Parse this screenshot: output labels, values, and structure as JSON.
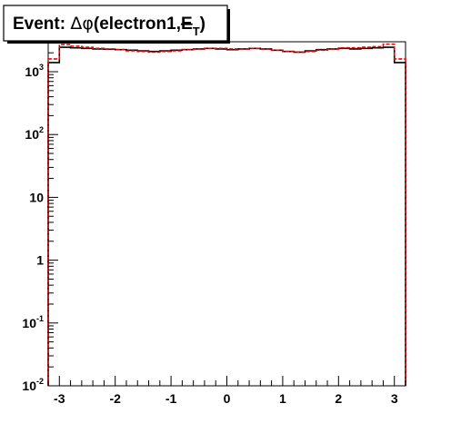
{
  "chart_data": {
    "type": "step",
    "title": {
      "prefix": "Event: ",
      "delta": "Δ",
      "phi": "φ",
      "paren_open": "(electron1,",
      "met_symbol": "E",
      "met_sub": "T",
      "paren_close": ")"
    },
    "xlabel": "",
    "ylabel": "",
    "x_range": [
      -3.2,
      3.2
    ],
    "y_range": [
      0.01,
      3000
    ],
    "y_scale": "log",
    "grid": false,
    "x_ticks": [
      {
        "value": -3,
        "label": "-3"
      },
      {
        "value": -2,
        "label": "-2"
      },
      {
        "value": -1,
        "label": "-1"
      },
      {
        "value": 0,
        "label": "0"
      },
      {
        "value": 1,
        "label": "1"
      },
      {
        "value": 2,
        "label": "2"
      },
      {
        "value": 3,
        "label": "3"
      }
    ],
    "y_ticks": [
      {
        "value": 1000,
        "base": "10",
        "exp": "3"
      },
      {
        "value": 100,
        "base": "10",
        "exp": "2"
      },
      {
        "value": 10,
        "base": "10",
        "exp": ""
      },
      {
        "value": 1,
        "base": "1",
        "exp": ""
      },
      {
        "value": 0.1,
        "base": "10",
        "exp": "-1"
      },
      {
        "value": 0.01,
        "base": "10",
        "exp": "-2"
      }
    ],
    "series": [
      {
        "color": "#000000",
        "style": "solid",
        "bin_edges": [
          -3.2,
          -3.0,
          -2.8,
          -2.6,
          -2.4,
          -2.2,
          -2.0,
          -1.8,
          -1.6,
          -1.4,
          -1.2,
          -1.0,
          -0.8,
          -0.6,
          -0.4,
          -0.2,
          0.0,
          0.2,
          0.4,
          0.6,
          0.8,
          1.0,
          1.2,
          1.4,
          1.6,
          1.8,
          2.0,
          2.2,
          2.4,
          2.6,
          2.8,
          3.0,
          3.2
        ],
        "values": [
          1400,
          2450,
          2400,
          2350,
          2300,
          2280,
          2250,
          2200,
          2150,
          2100,
          2150,
          2200,
          2250,
          2300,
          2350,
          2300,
          2250,
          2300,
          2350,
          2300,
          2200,
          2100,
          2050,
          2150,
          2250,
          2300,
          2350,
          2300,
          2350,
          2400,
          2450,
          1400
        ]
      },
      {
        "color": "#ee0000",
        "style": "dashed",
        "bin_edges": [
          -3.2,
          -3.0,
          -2.8,
          -2.6,
          -2.4,
          -2.2,
          -2.0,
          -1.8,
          -1.6,
          -1.4,
          -1.2,
          -1.0,
          -0.8,
          -0.6,
          -0.4,
          -0.2,
          0.0,
          0.2,
          0.4,
          0.6,
          0.8,
          1.0,
          1.2,
          1.4,
          1.6,
          1.8,
          2.0,
          2.2,
          2.4,
          2.6,
          2.8,
          3.0,
          3.2
        ],
        "values": [
          1600,
          2700,
          2550,
          2450,
          2350,
          2300,
          2250,
          2150,
          2100,
          2050,
          2100,
          2150,
          2250,
          2300,
          2350,
          2350,
          2300,
          2300,
          2350,
          2300,
          2200,
          2100,
          2050,
          2100,
          2200,
          2300,
          2400,
          2400,
          2450,
          2500,
          2750,
          1600
        ]
      }
    ]
  }
}
